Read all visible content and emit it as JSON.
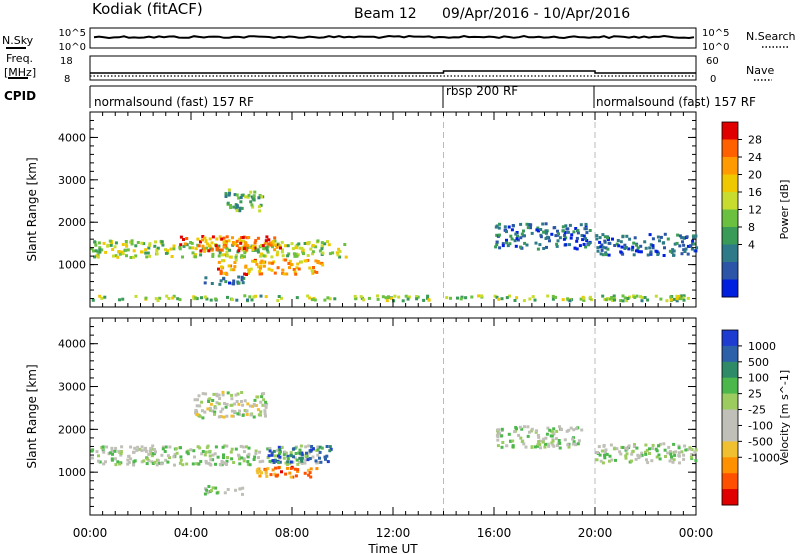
{
  "header": {
    "station": "Kodiak (fitACF)",
    "beam": "Beam 12",
    "dates": "09/Apr/2016 - 10/Apr/2016"
  },
  "strips": {
    "nsky_label": "N.Sky",
    "nsearch_label": "N.Search",
    "nsky_ticks": [
      "10^5",
      "10^0"
    ],
    "nsearch_ticks": [
      "10^5",
      "10^0"
    ],
    "freq_label": "Freq.",
    "freq_unit": "[MHz]",
    "freq_ticks": [
      "18",
      "8"
    ],
    "nave_label": "Nave",
    "nave_ticks": [
      "60",
      "0"
    ],
    "cpid_label": "CPID",
    "cpid_segments": [
      {
        "label": "normalsound (fast) 157 RF",
        "start": 0,
        "end": 14
      },
      {
        "label": "rbsp 200 RF",
        "start": 14,
        "end": 20
      },
      {
        "label": "normalsound (fast) 157 RF",
        "start": 20,
        "end": 24
      }
    ]
  },
  "chart_data": [
    {
      "type": "heatmap",
      "panel": "power",
      "ylabel": "Slant Range [km]",
      "xlabel": "",
      "xlim": [
        0,
        24
      ],
      "ylim": [
        0,
        4600
      ],
      "yticks": [
        1000,
        2000,
        3000,
        4000
      ],
      "colorbar": {
        "label": "Power [dB]",
        "ticks": [
          "28",
          "24",
          "20",
          "16",
          "12",
          "8",
          "4"
        ],
        "colors": [
          "#e00000",
          "#ff6000",
          "#ff9a00",
          "#f0c800",
          "#c8dc30",
          "#6cc040",
          "#3a9a58",
          "#2f7a88",
          "#2c55a8",
          "#0020e0"
        ]
      },
      "blobs": [
        {
          "t0": 0.0,
          "t1": 10.2,
          "r0": 1200,
          "r1": 1600,
          "level": 0.5
        },
        {
          "t0": 3.5,
          "t1": 7.5,
          "r0": 1350,
          "r1": 1700,
          "level": 0.8
        },
        {
          "t0": 5.0,
          "t1": 9.2,
          "r0": 800,
          "r1": 1150,
          "level": 0.75
        },
        {
          "t0": 4.5,
          "t1": 6.2,
          "r0": 550,
          "r1": 750,
          "level": 0.2
        },
        {
          "t0": 5.3,
          "t1": 6.8,
          "r0": 2300,
          "r1": 2800,
          "level": 0.4
        },
        {
          "t0": 16.0,
          "t1": 19.8,
          "r0": 1400,
          "r1": 2000,
          "level": 0.2
        },
        {
          "t0": 20.0,
          "t1": 24.0,
          "r0": 1250,
          "r1": 1750,
          "level": 0.2
        },
        {
          "t0": 0.0,
          "t1": 24.0,
          "r0": 180,
          "r1": 300,
          "level": 0.45
        }
      ]
    },
    {
      "type": "heatmap",
      "panel": "velocity",
      "ylabel": "Slant Range [km]",
      "xlabel": "Time UT",
      "xlim": [
        0,
        24
      ],
      "ylim": [
        0,
        4600
      ],
      "yticks": [
        1000,
        2000,
        3000,
        4000
      ],
      "xticks": [
        "00:00",
        "04:00",
        "08:00",
        "12:00",
        "16:00",
        "20:00",
        "00:00"
      ],
      "colorbar": {
        "label": "Velocity [m s^-1]",
        "ticks": [
          "1000",
          "500",
          "100",
          "25",
          "-25",
          "-100",
          "-500",
          "-1000"
        ],
        "colors": [
          "#1e3cd0",
          "#2c60a8",
          "#2f8a68",
          "#4cb84c",
          "#9ccc60",
          "#c0c0b8",
          "#c0c0b8",
          "#f0c030",
          "#ff9000",
          "#ff5000",
          "#e00000"
        ]
      },
      "blobs": [
        {
          "t0": 0.0,
          "t1": 9.0,
          "r0": 1200,
          "r1": 1650,
          "level": 0.45
        },
        {
          "t0": 7.0,
          "t1": 9.5,
          "r0": 1250,
          "r1": 1650,
          "level": 0.15
        },
        {
          "t0": 6.3,
          "t1": 9.0,
          "r0": 900,
          "r1": 1150,
          "level": 0.8
        },
        {
          "t0": 4.5,
          "t1": 6.0,
          "r0": 500,
          "r1": 700,
          "level": 0.45
        },
        {
          "t0": 16.0,
          "t1": 19.5,
          "r0": 1600,
          "r1": 2100,
          "level": 0.45
        },
        {
          "t0": 20.0,
          "t1": 24.0,
          "r0": 1250,
          "r1": 1700,
          "level": 0.45
        },
        {
          "t0": 4.0,
          "t1": 7.0,
          "r0": 2300,
          "r1": 2900,
          "level": 0.5
        }
      ]
    }
  ]
}
